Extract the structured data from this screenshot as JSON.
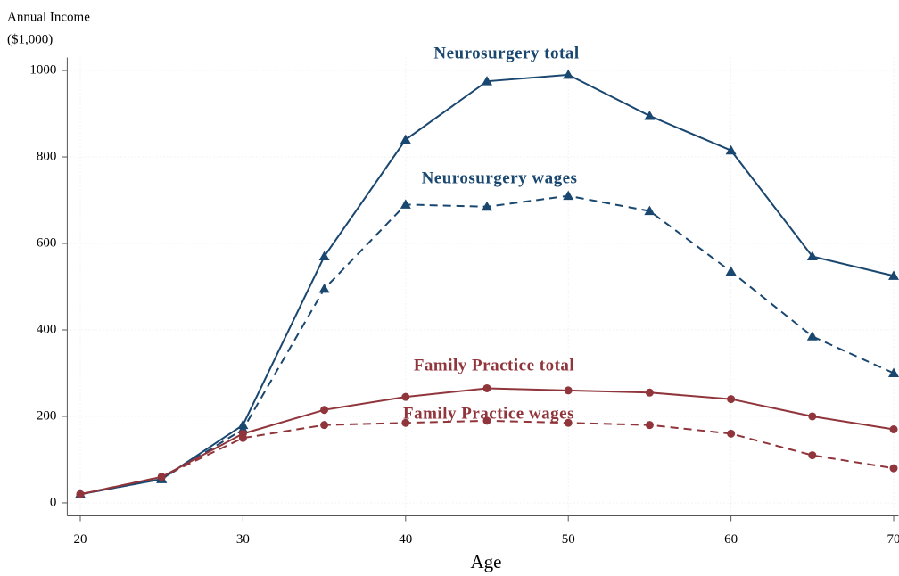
{
  "chart_data": {
    "type": "line",
    "ylabel": [
      "Annual Income",
      "($1,000)"
    ],
    "xlabel": "Age",
    "x": [
      20,
      25,
      30,
      35,
      40,
      45,
      50,
      55,
      60,
      65,
      70
    ],
    "series": [
      {
        "name": "Neurosurgery total",
        "color": "#1a476f",
        "dashed": false,
        "marker": "triangle",
        "values": [
          20,
          55,
          180,
          570,
          840,
          975,
          990,
          895,
          815,
          570,
          525
        ]
      },
      {
        "name": "Neurosurgery wages",
        "color": "#1a476f",
        "dashed": true,
        "marker": "triangle",
        "values": [
          20,
          55,
          170,
          495,
          690,
          685,
          710,
          675,
          535,
          385,
          300
        ]
      },
      {
        "name": "Family Practice total",
        "color": "#90353b",
        "dashed": false,
        "marker": "circle",
        "values": [
          20,
          60,
          160,
          215,
          245,
          265,
          260,
          255,
          240,
          200,
          170
        ]
      },
      {
        "name": "Family Practice wages",
        "color": "#90353b",
        "dashed": true,
        "marker": "circle",
        "values": [
          20,
          60,
          150,
          180,
          185,
          190,
          185,
          180,
          160,
          110,
          80
        ]
      }
    ],
    "xlim": [
      19.2,
      70.3
    ],
    "ylim": [
      -30,
      1030
    ],
    "xticks": [
      20,
      30,
      40,
      50,
      60,
      70
    ],
    "yticks": [
      0,
      200,
      400,
      600,
      800,
      1000
    ],
    "grid": true
  }
}
